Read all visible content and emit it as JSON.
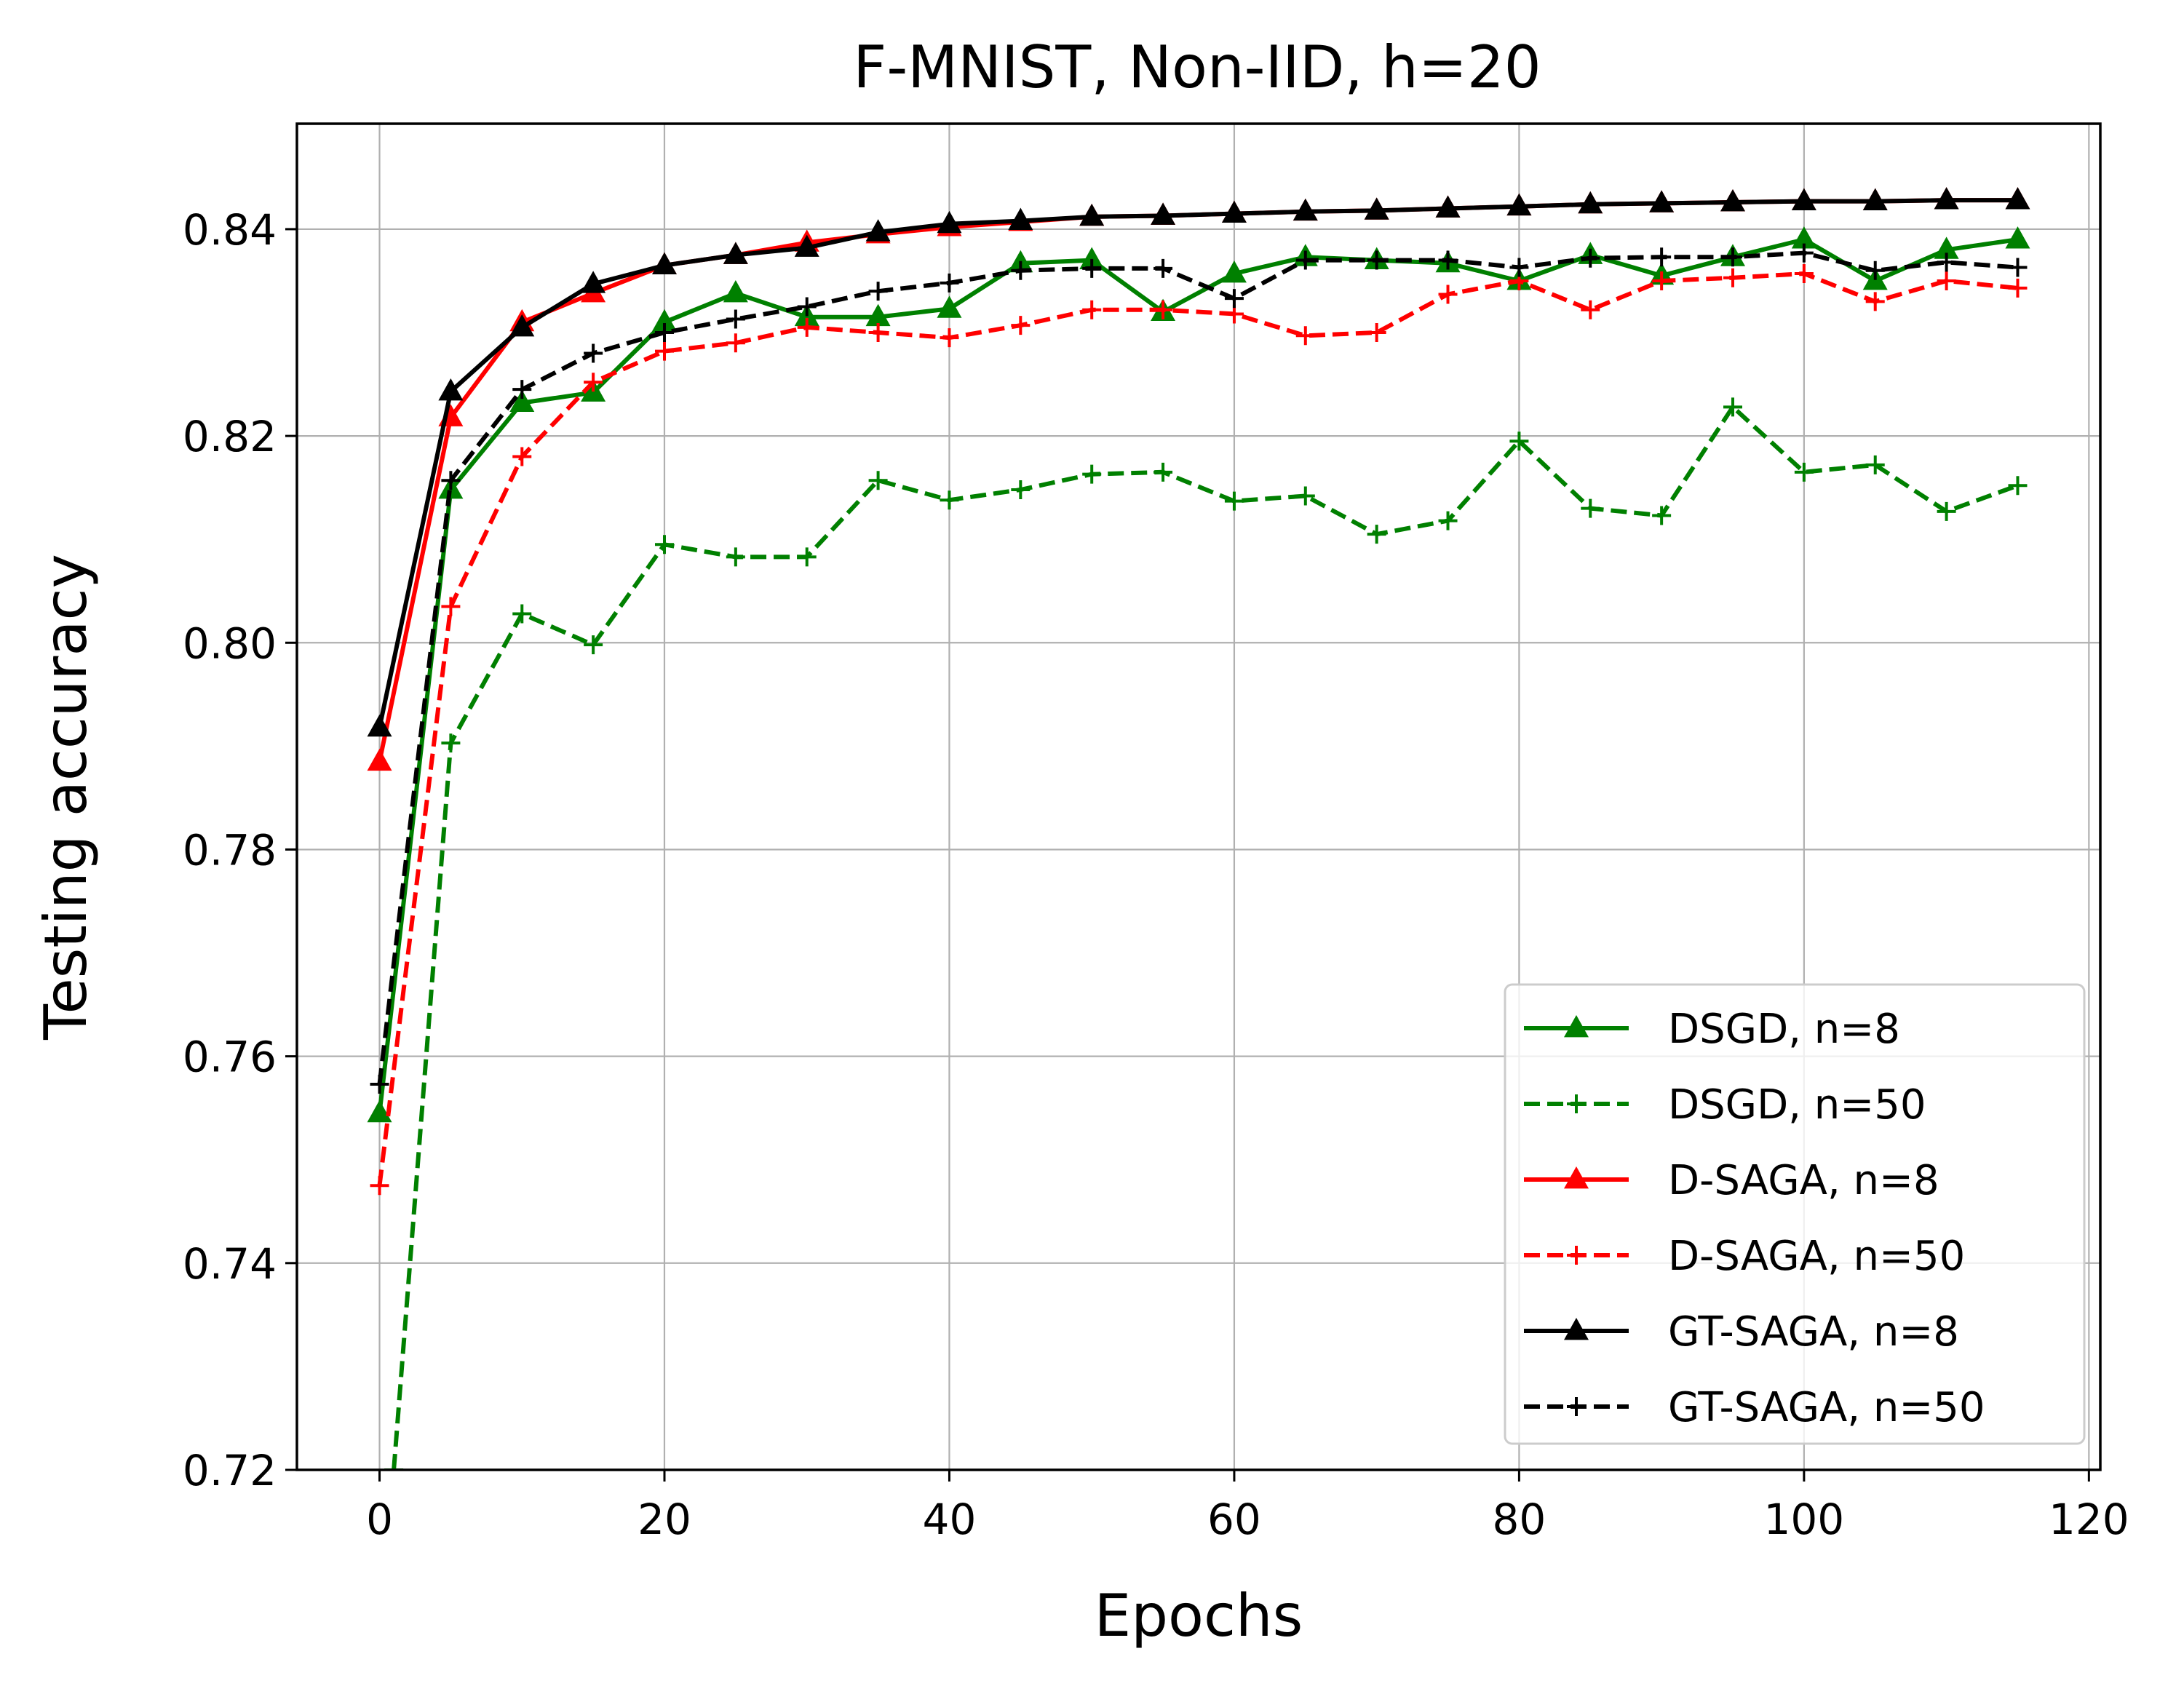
{
  "chart_data": {
    "type": "line",
    "title": "F-MNIST, Non-IID, h=20",
    "xlabel": "Epochs",
    "ylabel": "Testing accuracy",
    "xlim": [
      -5.8,
      120.8
    ],
    "ylim": [
      0.72,
      0.8502
    ],
    "xticks": [
      0,
      20,
      40,
      60,
      80,
      100,
      120
    ],
    "yticks": [
      0.72,
      0.74,
      0.76,
      0.78,
      0.8,
      0.82,
      0.84
    ],
    "ytick_labels": [
      "0.72",
      "0.74",
      "0.76",
      "0.78",
      "0.80",
      "0.82",
      "0.84"
    ],
    "grid": true,
    "legend_position": "lower-right",
    "x": [
      0,
      5,
      10,
      15,
      20,
      25,
      30,
      35,
      40,
      45,
      50,
      55,
      60,
      65,
      70,
      75,
      80,
      85,
      90,
      95,
      100,
      105,
      110,
      115
    ],
    "series": [
      {
        "name": "DSGD, n=8",
        "color": "#008000",
        "dash": "solid",
        "marker": "triangle",
        "values": [
          0.7545,
          0.8148,
          0.8232,
          0.8242,
          0.831,
          0.8338,
          0.8315,
          0.8315,
          0.8323,
          0.8367,
          0.837,
          0.832,
          0.8357,
          0.8373,
          0.837,
          0.8367,
          0.835,
          0.8375,
          0.8355,
          0.8373,
          0.839,
          0.835,
          0.838,
          0.839
        ]
      },
      {
        "name": "DSGD, n=50",
        "color": "#008000",
        "dash": "dashed",
        "marker": "plus",
        "points": [
          [
            1,
            0.72
          ],
          [
            5,
            0.7903
          ],
          [
            10,
            0.8028
          ],
          [
            15,
            0.7998
          ],
          [
            20,
            0.8095
          ],
          [
            25,
            0.8083
          ],
          [
            30,
            0.8083
          ],
          [
            35,
            0.8157
          ],
          [
            40,
            0.8138
          ],
          [
            45,
            0.8148
          ],
          [
            50,
            0.8163
          ],
          [
            55,
            0.8165
          ],
          [
            60,
            0.8137
          ],
          [
            65,
            0.8142
          ],
          [
            70,
            0.8105
          ],
          [
            75,
            0.8118
          ],
          [
            80,
            0.8195
          ],
          [
            85,
            0.813
          ],
          [
            90,
            0.8123
          ],
          [
            95,
            0.8228
          ],
          [
            100,
            0.8165
          ],
          [
            105,
            0.8172
          ],
          [
            110,
            0.8127
          ],
          [
            115,
            0.8152
          ]
        ]
      },
      {
        "name": "D-SAGA, n=8",
        "color": "#ff0000",
        "dash": "solid",
        "marker": "triangle",
        "values": [
          0.7885,
          0.8218,
          0.831,
          0.8338,
          0.8365,
          0.8375,
          0.8387,
          0.8395,
          0.8402,
          0.8407,
          0.8412,
          0.8413,
          0.8415,
          0.8417,
          0.8418,
          0.842,
          0.8422,
          0.8424,
          0.8425,
          0.8426,
          0.8427,
          0.8427,
          0.8428,
          0.8428
        ]
      },
      {
        "name": "D-SAGA, n=50",
        "color": "#ff0000",
        "dash": "dashed",
        "marker": "plus",
        "values": [
          0.7475,
          0.8035,
          0.818,
          0.8252,
          0.8282,
          0.829,
          0.8305,
          0.83,
          0.8295,
          0.8307,
          0.8322,
          0.8322,
          0.8318,
          0.8297,
          0.83,
          0.8337,
          0.835,
          0.8322,
          0.835,
          0.8353,
          0.8357,
          0.833,
          0.835,
          0.8343
        ]
      },
      {
        "name": "GT-SAGA, n=8",
        "color": "#000000",
        "dash": "solid",
        "marker": "triangle",
        "values": [
          0.7918,
          0.8243,
          0.8305,
          0.8347,
          0.8365,
          0.8375,
          0.8382,
          0.8397,
          0.8405,
          0.8408,
          0.8412,
          0.8413,
          0.8415,
          0.8417,
          0.8418,
          0.842,
          0.8422,
          0.8424,
          0.8425,
          0.8426,
          0.8427,
          0.8427,
          0.8428,
          0.8428
        ]
      },
      {
        "name": "GT-SAGA, n=50",
        "color": "#000000",
        "dash": "dashed",
        "marker": "plus",
        "values": [
          0.7573,
          0.8157,
          0.8245,
          0.828,
          0.83,
          0.8313,
          0.8325,
          0.834,
          0.8348,
          0.836,
          0.8362,
          0.8362,
          0.8333,
          0.837,
          0.837,
          0.837,
          0.8363,
          0.8372,
          0.8373,
          0.8373,
          0.8377,
          0.836,
          0.8368,
          0.8363
        ]
      }
    ]
  }
}
